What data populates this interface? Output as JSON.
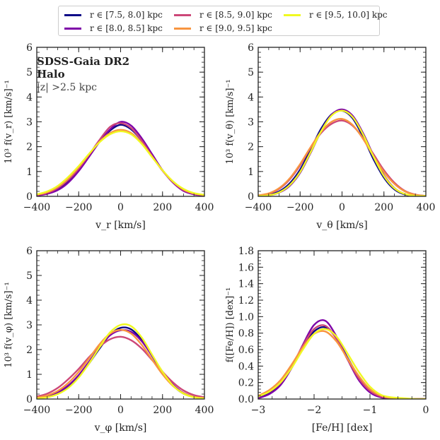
{
  "legend": {
    "entries": [
      {
        "label": "r ∈ [7.5, 8.0] kpc",
        "color": "#0d0887"
      },
      {
        "label": "r ∈ [8.0, 8.5] kpc",
        "color": "#7e03a8"
      },
      {
        "label": "r ∈ [8.5, 9.0] kpc",
        "color": "#cc4778"
      },
      {
        "label": "r ∈ [9.0, 9.5] kpc",
        "color": "#f89540"
      },
      {
        "label": "r ∈ [9.5, 10.0] kpc",
        "color": "#f0f921"
      }
    ]
  },
  "annotation": {
    "line1": "SDSS-Gaia DR2",
    "line2": "Halo",
    "line3": "|z| >2.5 kpc"
  },
  "chart_data": [
    {
      "type": "line",
      "id": "vr",
      "xlabel": "v_r [km/s]",
      "ylabel": "10³ f(v_r) [km/s]⁻¹",
      "xlim": [
        -400,
        400
      ],
      "ylim": [
        0,
        6
      ],
      "xticks": [
        -400,
        -200,
        0,
        200,
        400
      ],
      "xtick_labels": [
        "−400",
        "−200",
        "0",
        "200",
        "400"
      ],
      "yticks": [
        0,
        1,
        2,
        3,
        4,
        5,
        6
      ],
      "ytick_labels": [
        "0",
        "1",
        "2",
        "3",
        "4",
        "5",
        "6"
      ],
      "x": [
        -400,
        -350,
        -300,
        -250,
        -200,
        -150,
        -100,
        -50,
        0,
        50,
        100,
        150,
        200,
        250,
        300,
        350,
        400
      ],
      "series": [
        {
          "name": "r ∈ [7.5, 8.0] kpc",
          "values": [
            0.05,
            0.12,
            0.3,
            0.62,
            1.1,
            1.65,
            2.2,
            2.65,
            2.88,
            2.7,
            2.25,
            1.65,
            1.05,
            0.58,
            0.25,
            0.1,
            0.04
          ]
        },
        {
          "name": "r ∈ [8.0, 8.5] kpc",
          "values": [
            0.03,
            0.1,
            0.25,
            0.55,
            1.02,
            1.6,
            2.2,
            2.7,
            3.0,
            2.85,
            2.35,
            1.7,
            1.05,
            0.55,
            0.22,
            0.08,
            0.03
          ]
        },
        {
          "name": "r ∈ [8.5, 9.0] kpc",
          "values": [
            0.05,
            0.14,
            0.33,
            0.66,
            1.12,
            1.68,
            2.28,
            2.8,
            2.95,
            2.75,
            2.25,
            1.62,
            1.03,
            0.57,
            0.25,
            0.1,
            0.04
          ]
        },
        {
          "name": "r ∈ [9.0, 9.5] kpc",
          "values": [
            0.07,
            0.17,
            0.38,
            0.72,
            1.18,
            1.7,
            2.2,
            2.55,
            2.68,
            2.55,
            2.15,
            1.6,
            1.05,
            0.6,
            0.28,
            0.12,
            0.05
          ]
        },
        {
          "name": "r ∈ [9.5, 10.0] kpc",
          "values": [
            0.08,
            0.2,
            0.42,
            0.78,
            1.22,
            1.72,
            2.18,
            2.5,
            2.62,
            2.5,
            2.12,
            1.58,
            1.05,
            0.6,
            0.3,
            0.13,
            0.06
          ]
        }
      ]
    },
    {
      "type": "line",
      "id": "vtheta",
      "xlabel": "v_θ [km/s]",
      "ylabel": "10³ f(v_θ) [km/s]⁻¹",
      "xlim": [
        -400,
        400
      ],
      "ylim": [
        0,
        6
      ],
      "xticks": [
        -400,
        -200,
        0,
        200,
        400
      ],
      "xtick_labels": [
        "−400",
        "−200",
        "0",
        "200",
        "400"
      ],
      "yticks": [
        0,
        1,
        2,
        3,
        4,
        5,
        6
      ],
      "ytick_labels": [
        "0",
        "1",
        "2",
        "3",
        "4",
        "5",
        "6"
      ],
      "x": [
        -400,
        -350,
        -300,
        -250,
        -200,
        -150,
        -100,
        -50,
        0,
        50,
        100,
        150,
        200,
        250,
        300,
        350,
        400
      ],
      "series": [
        {
          "name": "r ∈ [7.5, 8.0] kpc",
          "values": [
            0.02,
            0.06,
            0.2,
            0.52,
            1.08,
            1.88,
            2.72,
            3.3,
            3.45,
            3.15,
            2.4,
            1.5,
            0.75,
            0.28,
            0.07,
            0.02,
            0.01
          ]
        },
        {
          "name": "r ∈ [8.0, 8.5] kpc",
          "values": [
            0.01,
            0.04,
            0.15,
            0.42,
            0.95,
            1.75,
            2.62,
            3.28,
            3.5,
            3.25,
            2.55,
            1.65,
            0.85,
            0.33,
            0.09,
            0.02,
            0.01
          ]
        },
        {
          "name": "r ∈ [8.5, 9.0] kpc",
          "values": [
            0.03,
            0.1,
            0.3,
            0.68,
            1.25,
            1.95,
            2.55,
            2.92,
            3.05,
            2.85,
            2.35,
            1.7,
            1.05,
            0.55,
            0.22,
            0.07,
            0.02
          ]
        },
        {
          "name": "r ∈ [9.0, 9.5] kpc",
          "values": [
            0.04,
            0.12,
            0.33,
            0.72,
            1.3,
            1.98,
            2.6,
            3.0,
            3.12,
            2.88,
            2.32,
            1.62,
            0.98,
            0.5,
            0.2,
            0.06,
            0.02
          ]
        },
        {
          "name": "r ∈ [9.5, 10.0] kpc",
          "values": [
            0.01,
            0.04,
            0.16,
            0.45,
            0.98,
            1.78,
            2.62,
            3.25,
            3.45,
            3.2,
            2.5,
            1.6,
            0.82,
            0.32,
            0.09,
            0.02,
            0.01
          ]
        }
      ]
    },
    {
      "type": "line",
      "id": "vphi",
      "xlabel": "v_φ [km/s]",
      "ylabel": "10³ f(v_φ) [km/s]⁻¹",
      "xlim": [
        -400,
        400
      ],
      "ylim": [
        0,
        6
      ],
      "xticks": [
        -400,
        -200,
        0,
        200,
        400
      ],
      "xtick_labels": [
        "−400",
        "−200",
        "0",
        "200",
        "400"
      ],
      "yticks": [
        0,
        1,
        2,
        3,
        4,
        5,
        6
      ],
      "ytick_labels": [
        "0",
        "1",
        "2",
        "3",
        "4",
        "5",
        "6"
      ],
      "x": [
        -400,
        -350,
        -300,
        -250,
        -200,
        -150,
        -100,
        -50,
        0,
        50,
        100,
        150,
        200,
        250,
        300,
        350,
        400
      ],
      "series": [
        {
          "name": "r ∈ [7.5, 8.0] kpc",
          "values": [
            0.04,
            0.1,
            0.24,
            0.5,
            0.9,
            1.45,
            2.05,
            2.6,
            2.88,
            2.82,
            2.4,
            1.75,
            1.08,
            0.55,
            0.22,
            0.08,
            0.03
          ]
        },
        {
          "name": "r ∈ [8.0, 8.5] kpc",
          "values": [
            0.04,
            0.11,
            0.27,
            0.55,
            0.97,
            1.52,
            2.1,
            2.58,
            2.78,
            2.72,
            2.35,
            1.75,
            1.1,
            0.58,
            0.25,
            0.09,
            0.03
          ]
        },
        {
          "name": "r ∈ [8.5, 9.0] kpc",
          "values": [
            0.1,
            0.22,
            0.45,
            0.8,
            1.22,
            1.7,
            2.12,
            2.42,
            2.52,
            2.38,
            2.05,
            1.58,
            1.1,
            0.67,
            0.35,
            0.16,
            0.07
          ]
        },
        {
          "name": "r ∈ [9.0, 9.5] kpc",
          "values": [
            0.06,
            0.15,
            0.33,
            0.65,
            1.1,
            1.65,
            2.22,
            2.65,
            2.8,
            2.65,
            2.2,
            1.6,
            1.0,
            0.53,
            0.24,
            0.09,
            0.04
          ]
        },
        {
          "name": "r ∈ [9.5, 10.0] kpc",
          "values": [
            0.02,
            0.07,
            0.2,
            0.45,
            0.87,
            1.45,
            2.1,
            2.7,
            3.0,
            2.95,
            2.5,
            1.8,
            1.1,
            0.55,
            0.22,
            0.07,
            0.02
          ]
        }
      ]
    },
    {
      "type": "line",
      "id": "feh",
      "xlabel": "[Fe/H] [dex]",
      "ylabel": "f([Fe/H]) [dex]⁻¹",
      "xlim": [
        -3,
        0
      ],
      "ylim": [
        0,
        1.8
      ],
      "xticks": [
        -3,
        -2,
        -1,
        0
      ],
      "xtick_labels": [
        "−3",
        "−2",
        "−1",
        "0"
      ],
      "yticks": [
        0,
        0.2,
        0.4,
        0.6,
        0.8,
        1.0,
        1.2,
        1.4,
        1.6,
        1.8
      ],
      "ytick_labels": [
        "0.0",
        "0.2",
        "0.4",
        "0.6",
        "0.8",
        "1.0",
        "1.2",
        "1.4",
        "1.6",
        "1.8"
      ],
      "x": [
        -3.0,
        -2.8,
        -2.6,
        -2.4,
        -2.2,
        -2.0,
        -1.8,
        -1.6,
        -1.4,
        -1.2,
        -1.0,
        -0.8,
        -0.6,
        -0.4,
        -0.2,
        0.0
      ],
      "series": [
        {
          "name": "r ∈ [7.5, 8.0] kpc",
          "values": [
            0.02,
            0.08,
            0.19,
            0.38,
            0.62,
            0.82,
            0.87,
            0.74,
            0.5,
            0.27,
            0.11,
            0.03,
            0.01,
            0.0,
            0.0,
            0.0
          ]
        },
        {
          "name": "r ∈ [8.0, 8.5] kpc",
          "values": [
            0.01,
            0.06,
            0.17,
            0.38,
            0.66,
            0.9,
            0.95,
            0.76,
            0.48,
            0.23,
            0.08,
            0.02,
            0.0,
            0.0,
            0.0,
            0.0
          ]
        },
        {
          "name": "r ∈ [8.5, 9.0] kpc",
          "values": [
            0.03,
            0.09,
            0.2,
            0.4,
            0.65,
            0.85,
            0.89,
            0.73,
            0.48,
            0.25,
            0.1,
            0.03,
            0.01,
            0.0,
            0.0,
            0.0
          ]
        },
        {
          "name": "r ∈ [9.0, 9.5] kpc",
          "values": [
            0.04,
            0.11,
            0.23,
            0.42,
            0.63,
            0.79,
            0.82,
            0.7,
            0.49,
            0.28,
            0.12,
            0.04,
            0.01,
            0.0,
            0.0,
            0.0
          ]
        },
        {
          "name": "r ∈ [9.5, 10.0] kpc",
          "values": [
            0.03,
            0.09,
            0.2,
            0.38,
            0.6,
            0.79,
            0.85,
            0.76,
            0.55,
            0.33,
            0.15,
            0.05,
            0.02,
            0.01,
            0.0,
            0.0
          ]
        }
      ]
    }
  ]
}
